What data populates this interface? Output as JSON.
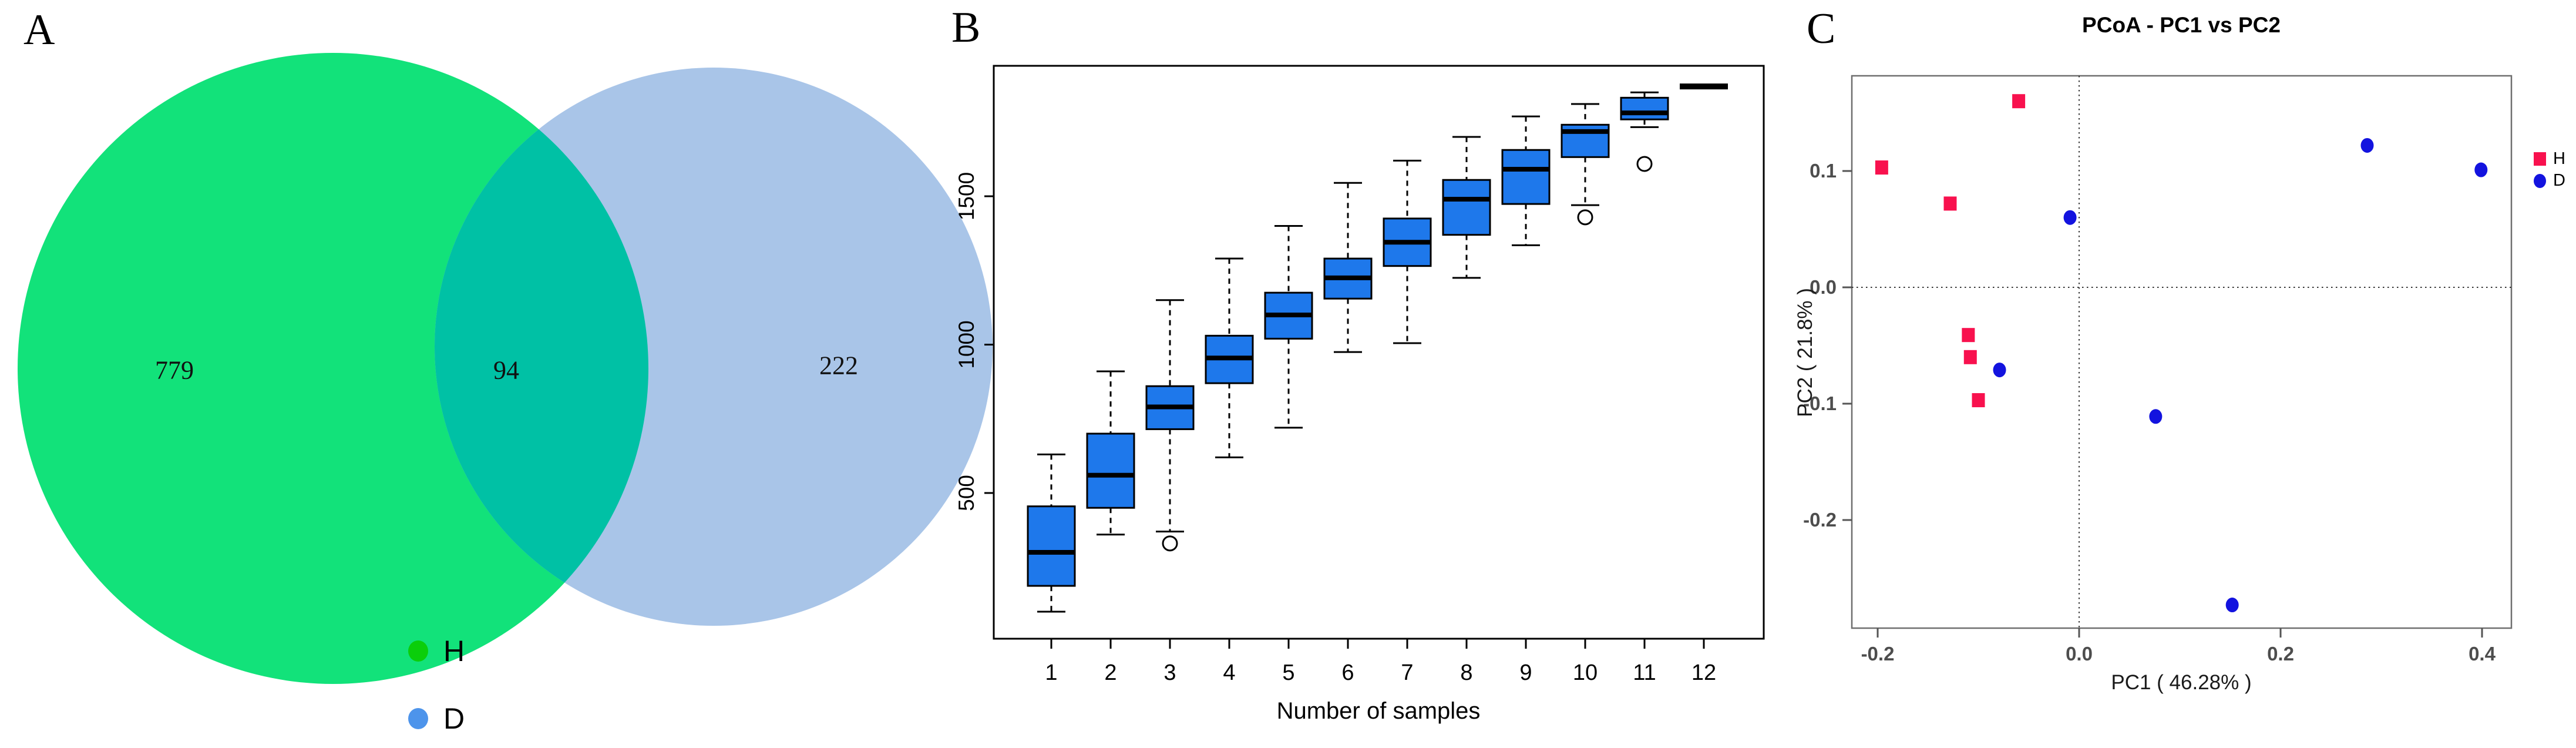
{
  "panels": {
    "A": {
      "label": "A",
      "venn": {
        "left_count": "779",
        "overlap_count": "94",
        "right_count": "222",
        "left_color": "#12E27A",
        "right_color": "#A9C5E8",
        "overlap_color": "#00C1A5"
      },
      "legend": [
        {
          "label": "H",
          "color": "#0BCE0B"
        },
        {
          "label": "D",
          "color": "#4D94EB"
        }
      ]
    },
    "B": {
      "label": "B"
    },
    "C": {
      "label": "C"
    }
  },
  "chart_data": [
    {
      "type": "boxplot",
      "title": "",
      "xlabel": "Number of samples",
      "ylabel": "",
      "categories": [
        "1",
        "2",
        "3",
        "4",
        "5",
        "6",
        "7",
        "8",
        "9",
        "10",
        "11",
        "12"
      ],
      "yticks": [
        500,
        1000,
        1500
      ],
      "ylim": [
        10,
        1940
      ],
      "grid": false,
      "box_color": "#1E78EB",
      "boxes": [
        {
          "n": 1,
          "lo": 100,
          "q1": 187,
          "med": 300,
          "q3": 455,
          "hi": 630,
          "outliers": []
        },
        {
          "n": 2,
          "lo": 360,
          "q1": 450,
          "med": 560,
          "q3": 700,
          "hi": 910,
          "outliers": []
        },
        {
          "n": 3,
          "lo": 370,
          "q1": 715,
          "med": 790,
          "q3": 860,
          "hi": 1150,
          "outliers": [
            330
          ]
        },
        {
          "n": 4,
          "lo": 620,
          "q1": 870,
          "med": 955,
          "q3": 1030,
          "hi": 1290,
          "outliers": []
        },
        {
          "n": 5,
          "lo": 720,
          "q1": 1020,
          "med": 1100,
          "q3": 1175,
          "hi": 1400,
          "outliers": []
        },
        {
          "n": 6,
          "lo": 975,
          "q1": 1155,
          "med": 1225,
          "q3": 1290,
          "hi": 1545,
          "outliers": []
        },
        {
          "n": 7,
          "lo": 1005,
          "q1": 1265,
          "med": 1345,
          "q3": 1425,
          "hi": 1620,
          "outliers": []
        },
        {
          "n": 8,
          "lo": 1225,
          "q1": 1370,
          "med": 1490,
          "q3": 1555,
          "hi": 1700,
          "outliers": []
        },
        {
          "n": 9,
          "lo": 1335,
          "q1": 1474,
          "med": 1591,
          "q3": 1656,
          "hi": 1769,
          "outliers": []
        },
        {
          "n": 10,
          "lo": 1470,
          "q1": 1632,
          "med": 1718,
          "q3": 1741,
          "hi": 1811,
          "outliers": [
            1429
          ]
        },
        {
          "n": 11,
          "lo": 1733,
          "q1": 1759,
          "med": 1781,
          "q3": 1832,
          "hi": 1850,
          "outliers": [
            1609
          ]
        },
        {
          "n": 12,
          "lo": 1870,
          "q1": 1870,
          "med": 1870,
          "q3": 1870,
          "hi": 1870,
          "outliers": []
        }
      ]
    },
    {
      "type": "scatter",
      "title": "PCoA - PC1 vs PC2",
      "xlabel": "PC1 ( 46.28% )",
      "ylabel": "PC2 ( 21.8% )",
      "xticks": [
        "-0.2",
        "0.0",
        "0.2",
        "0.4"
      ],
      "yticks": [
        "0.1",
        "0.0",
        "-0.1",
        "-0.2"
      ],
      "xtick_values": [
        -0.2,
        0.0,
        0.2,
        0.4
      ],
      "ytick_values": [
        0.1,
        0.0,
        -0.1,
        -0.2
      ],
      "xlim": [
        -0.226,
        0.429
      ],
      "ylim": [
        -0.293,
        0.182
      ],
      "zero_lines": true,
      "legend_position": "right-outside",
      "series": [
        {
          "name": "H",
          "marker": "square",
          "color": "#F8114E",
          "points": [
            [
              -0.196,
              0.103
            ],
            [
              -0.06,
              0.16
            ],
            [
              -0.128,
              0.072
            ],
            [
              -0.11,
              -0.041
            ],
            [
              -0.108,
              -0.06
            ],
            [
              -0.1,
              -0.097
            ]
          ]
        },
        {
          "name": "D",
          "marker": "circle",
          "color": "#1313DF",
          "points": [
            [
              -0.009,
              0.06
            ],
            [
              0.286,
              0.122
            ],
            [
              0.399,
              0.101
            ],
            [
              -0.079,
              -0.071
            ],
            [
              0.076,
              -0.111
            ],
            [
              0.152,
              -0.273
            ]
          ]
        }
      ]
    }
  ]
}
